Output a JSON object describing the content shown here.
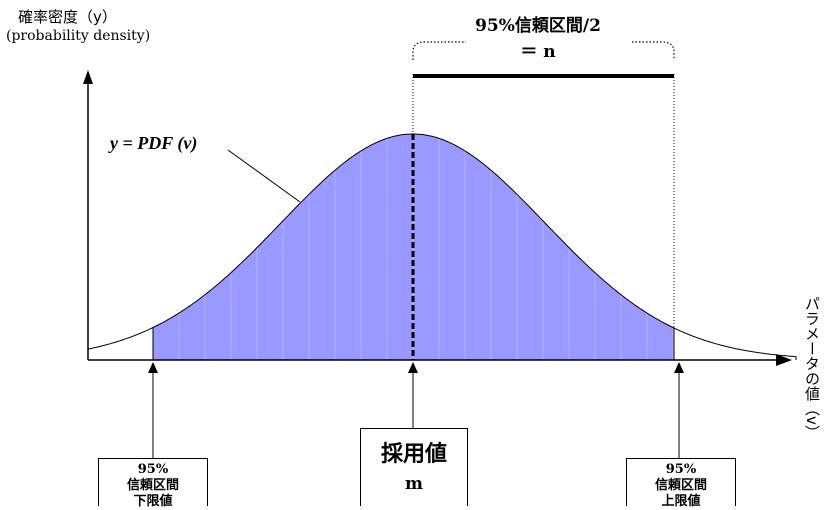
{
  "y_axis": {
    "label_ja": "確率密度（y）",
    "label_en": "(probability density)"
  },
  "x_axis": {
    "label": "パラメータの値（v）"
  },
  "curve": {
    "label": "y = PDF (v)",
    "fill_color": "#9999ff",
    "shaded_interval": "95% confidence interval"
  },
  "confidence_interval": {
    "title": "95%信頼区間/2",
    "equals_n": "＝ n"
  },
  "markers": {
    "lower": {
      "line1": "95%",
      "line2": "信頼区間",
      "line3": "下限値"
    },
    "adopted": {
      "line1": "採用値",
      "line2": "m"
    },
    "upper": {
      "line1": "95%",
      "line2": "信頼区間",
      "line3": "上限値"
    }
  }
}
